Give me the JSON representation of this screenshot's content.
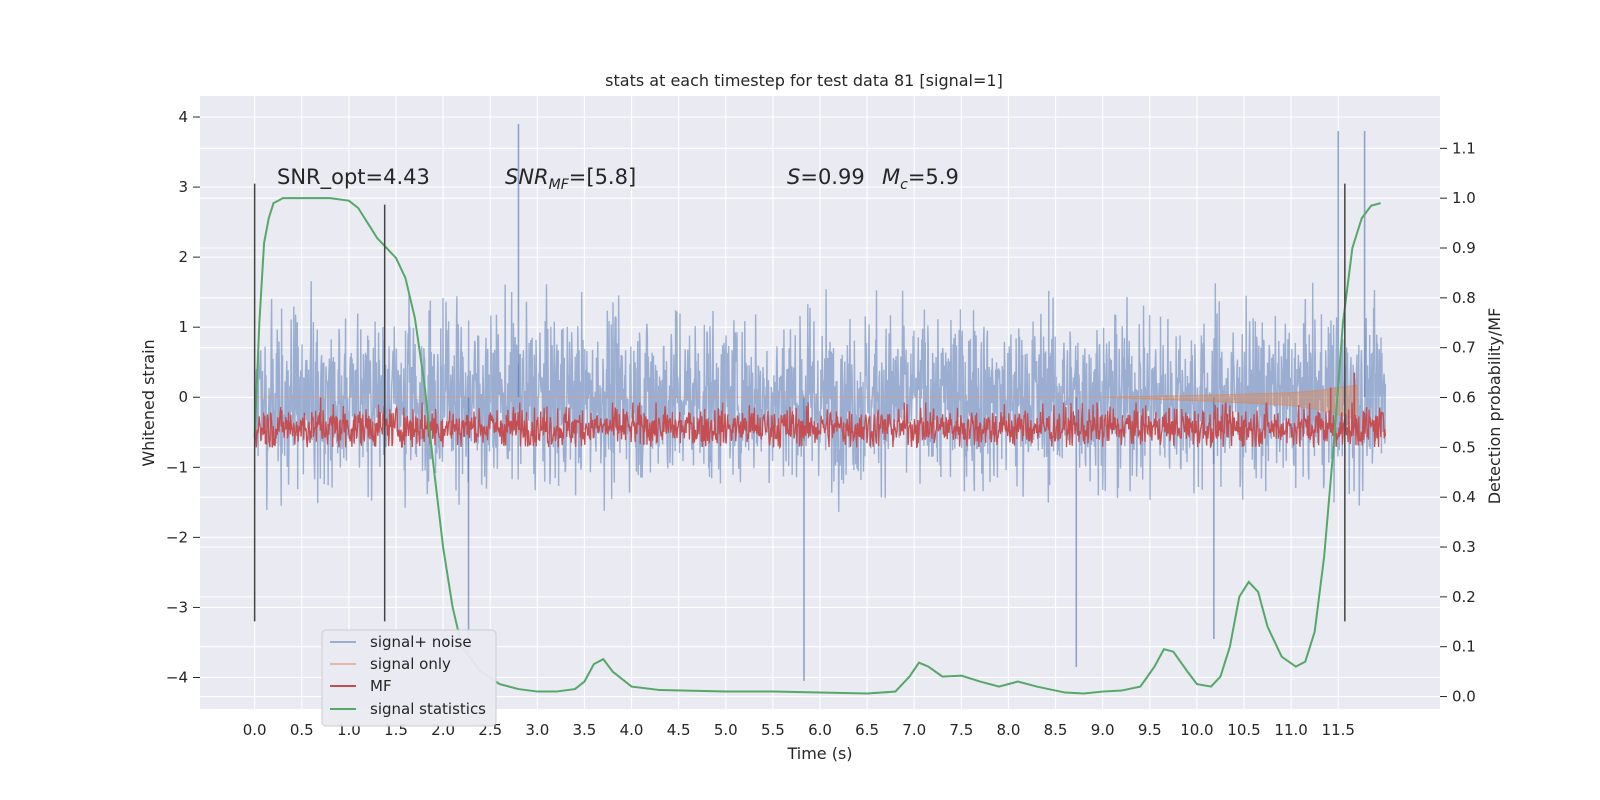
{
  "chart_data": {
    "type": "line",
    "title": "stats at each timestep for test data 81 [signal=1]",
    "xlabel": "Time (s)",
    "ylabel": "Whitened strain",
    "y2label": "Detection probability/MF",
    "xlim": [
      -0.58,
      12.58
    ],
    "ylim": [
      -4.45,
      4.3
    ],
    "y2lim": [
      -0.025,
      1.205
    ],
    "xticks": [
      0.0,
      0.5,
      1.0,
      1.5,
      2.0,
      2.5,
      3.0,
      3.5,
      4.0,
      4.5,
      5.0,
      5.5,
      6.0,
      6.5,
      7.0,
      7.5,
      8.0,
      8.5,
      9.0,
      9.5,
      10.0,
      10.5,
      11.0,
      11.5
    ],
    "xtick_labels": [
      "0.0",
      "0.5",
      "1.0",
      "1.5",
      "2.0",
      "2.5",
      "3.0",
      "3.5",
      "4.0",
      "4.5",
      "5.0",
      "5.5",
      "6.0",
      "6.5",
      "7.0",
      "7.5",
      "8.0",
      "8.5",
      "9.0",
      "9.5",
      "10.0",
      "10.5",
      "11.0",
      "11.5"
    ],
    "yticks": [
      -4,
      -3,
      -2,
      -1,
      0,
      1,
      2,
      3,
      4
    ],
    "ytick_labels": [
      "−4",
      "−3",
      "−2",
      "−1",
      "0",
      "1",
      "2",
      "3",
      "4"
    ],
    "y2ticks": [
      0.0,
      0.1,
      0.2,
      0.3,
      0.4,
      0.5,
      0.6,
      0.7,
      0.8,
      0.9,
      1.0,
      1.1
    ],
    "y2tick_labels": [
      "0.0",
      "0.1",
      "0.2",
      "0.3",
      "0.4",
      "0.5",
      "0.6",
      "0.7",
      "0.8",
      "0.9",
      "1.0",
      "1.1"
    ],
    "grid": true,
    "legend_position": "lower-left",
    "annotations": {
      "snr_opt": "SNR_opt=4.43",
      "snr_mf_sym": "SNR",
      "snr_mf_sub": "MF",
      "snr_mf_val": "=[5.8]",
      "s_sym": "S",
      "s_val": "=0.99",
      "mc_sym": "M",
      "mc_sub": "c",
      "mc_val": "=5.9"
    },
    "vertical_markers": [
      {
        "x": 0.0,
        "ymin": -3.2,
        "ymax": 3.05
      },
      {
        "x": 1.38,
        "ymin": -3.2,
        "ymax": 2.75
      },
      {
        "x": 11.57,
        "ymin": -3.2,
        "ymax": 3.05
      }
    ],
    "series": [
      {
        "name": "signal+ noise",
        "color": "#4c72b0",
        "kind": "noise",
        "x_range": [
          0.0,
          12.0
        ],
        "typical_max": 1.8,
        "typical_min": -1.8,
        "spikes": [
          {
            "x": 2.8,
            "y": 3.9
          },
          {
            "x": 11.5,
            "y": 3.8
          },
          {
            "x": 11.78,
            "y": 3.8
          },
          {
            "x": 5.83,
            "y": -4.05
          },
          {
            "x": 8.72,
            "y": -3.85
          },
          {
            "x": 2.27,
            "y": -3.65
          },
          {
            "x": 10.18,
            "y": -3.45
          }
        ]
      },
      {
        "name": "signal only",
        "color": "#dd8452",
        "kind": "chirp",
        "x": [
          0.0,
          2.0,
          4.0,
          6.0,
          8.0,
          9.0,
          10.0,
          10.5,
          11.0,
          11.3,
          11.5,
          11.65,
          11.7
        ],
        "y": [
          0.0,
          0.0,
          0.0,
          0.0,
          0.0,
          0.0,
          -0.05,
          -0.08,
          -0.12,
          -0.18,
          -0.25,
          -0.3,
          -0.32
        ]
      },
      {
        "name": "MF",
        "color": "#c44e52",
        "kind": "mf",
        "x_range": [
          0.0,
          12.0
        ],
        "axis": "right",
        "baseline": 0.54,
        "amplitude": 0.06,
        "spikes": [
          {
            "x": 0.7,
            "y": 0.6
          },
          {
            "x": 11.67,
            "y": 0.65
          },
          {
            "x": 11.42,
            "y": 0.62
          }
        ]
      },
      {
        "name": "signal statistics",
        "color": "#55a868",
        "kind": "line",
        "axis": "right",
        "x": [
          0.0,
          0.05,
          0.1,
          0.15,
          0.2,
          0.3,
          0.5,
          0.8,
          1.0,
          1.1,
          1.2,
          1.3,
          1.4,
          1.5,
          1.6,
          1.7,
          1.8,
          1.9,
          2.0,
          2.1,
          2.2,
          2.4,
          2.6,
          2.8,
          3.0,
          3.2,
          3.4,
          3.5,
          3.6,
          3.7,
          3.8,
          4.0,
          4.3,
          5.0,
          5.5,
          6.0,
          6.5,
          6.8,
          6.95,
          7.05,
          7.15,
          7.3,
          7.5,
          7.7,
          7.9,
          8.1,
          8.3,
          8.6,
          8.8,
          9.0,
          9.2,
          9.4,
          9.55,
          9.65,
          9.75,
          9.9,
          10.0,
          10.15,
          10.25,
          10.35,
          10.45,
          10.55,
          10.65,
          10.75,
          10.9,
          11.05,
          11.15,
          11.25,
          11.35,
          11.45,
          11.55,
          11.65,
          11.75,
          11.85,
          11.95
        ],
        "y": [
          0.52,
          0.75,
          0.91,
          0.96,
          0.99,
          1.0,
          1.0,
          1.0,
          0.995,
          0.98,
          0.95,
          0.92,
          0.9,
          0.88,
          0.84,
          0.76,
          0.63,
          0.46,
          0.3,
          0.18,
          0.1,
          0.05,
          0.025,
          0.015,
          0.01,
          0.01,
          0.015,
          0.03,
          0.065,
          0.075,
          0.05,
          0.02,
          0.013,
          0.01,
          0.01,
          0.008,
          0.006,
          0.01,
          0.04,
          0.068,
          0.06,
          0.04,
          0.042,
          0.03,
          0.02,
          0.03,
          0.02,
          0.008,
          0.006,
          0.01,
          0.012,
          0.02,
          0.06,
          0.095,
          0.09,
          0.05,
          0.025,
          0.02,
          0.04,
          0.1,
          0.2,
          0.23,
          0.21,
          0.14,
          0.08,
          0.06,
          0.07,
          0.13,
          0.28,
          0.5,
          0.75,
          0.9,
          0.96,
          0.985,
          0.99
        ]
      }
    ]
  }
}
